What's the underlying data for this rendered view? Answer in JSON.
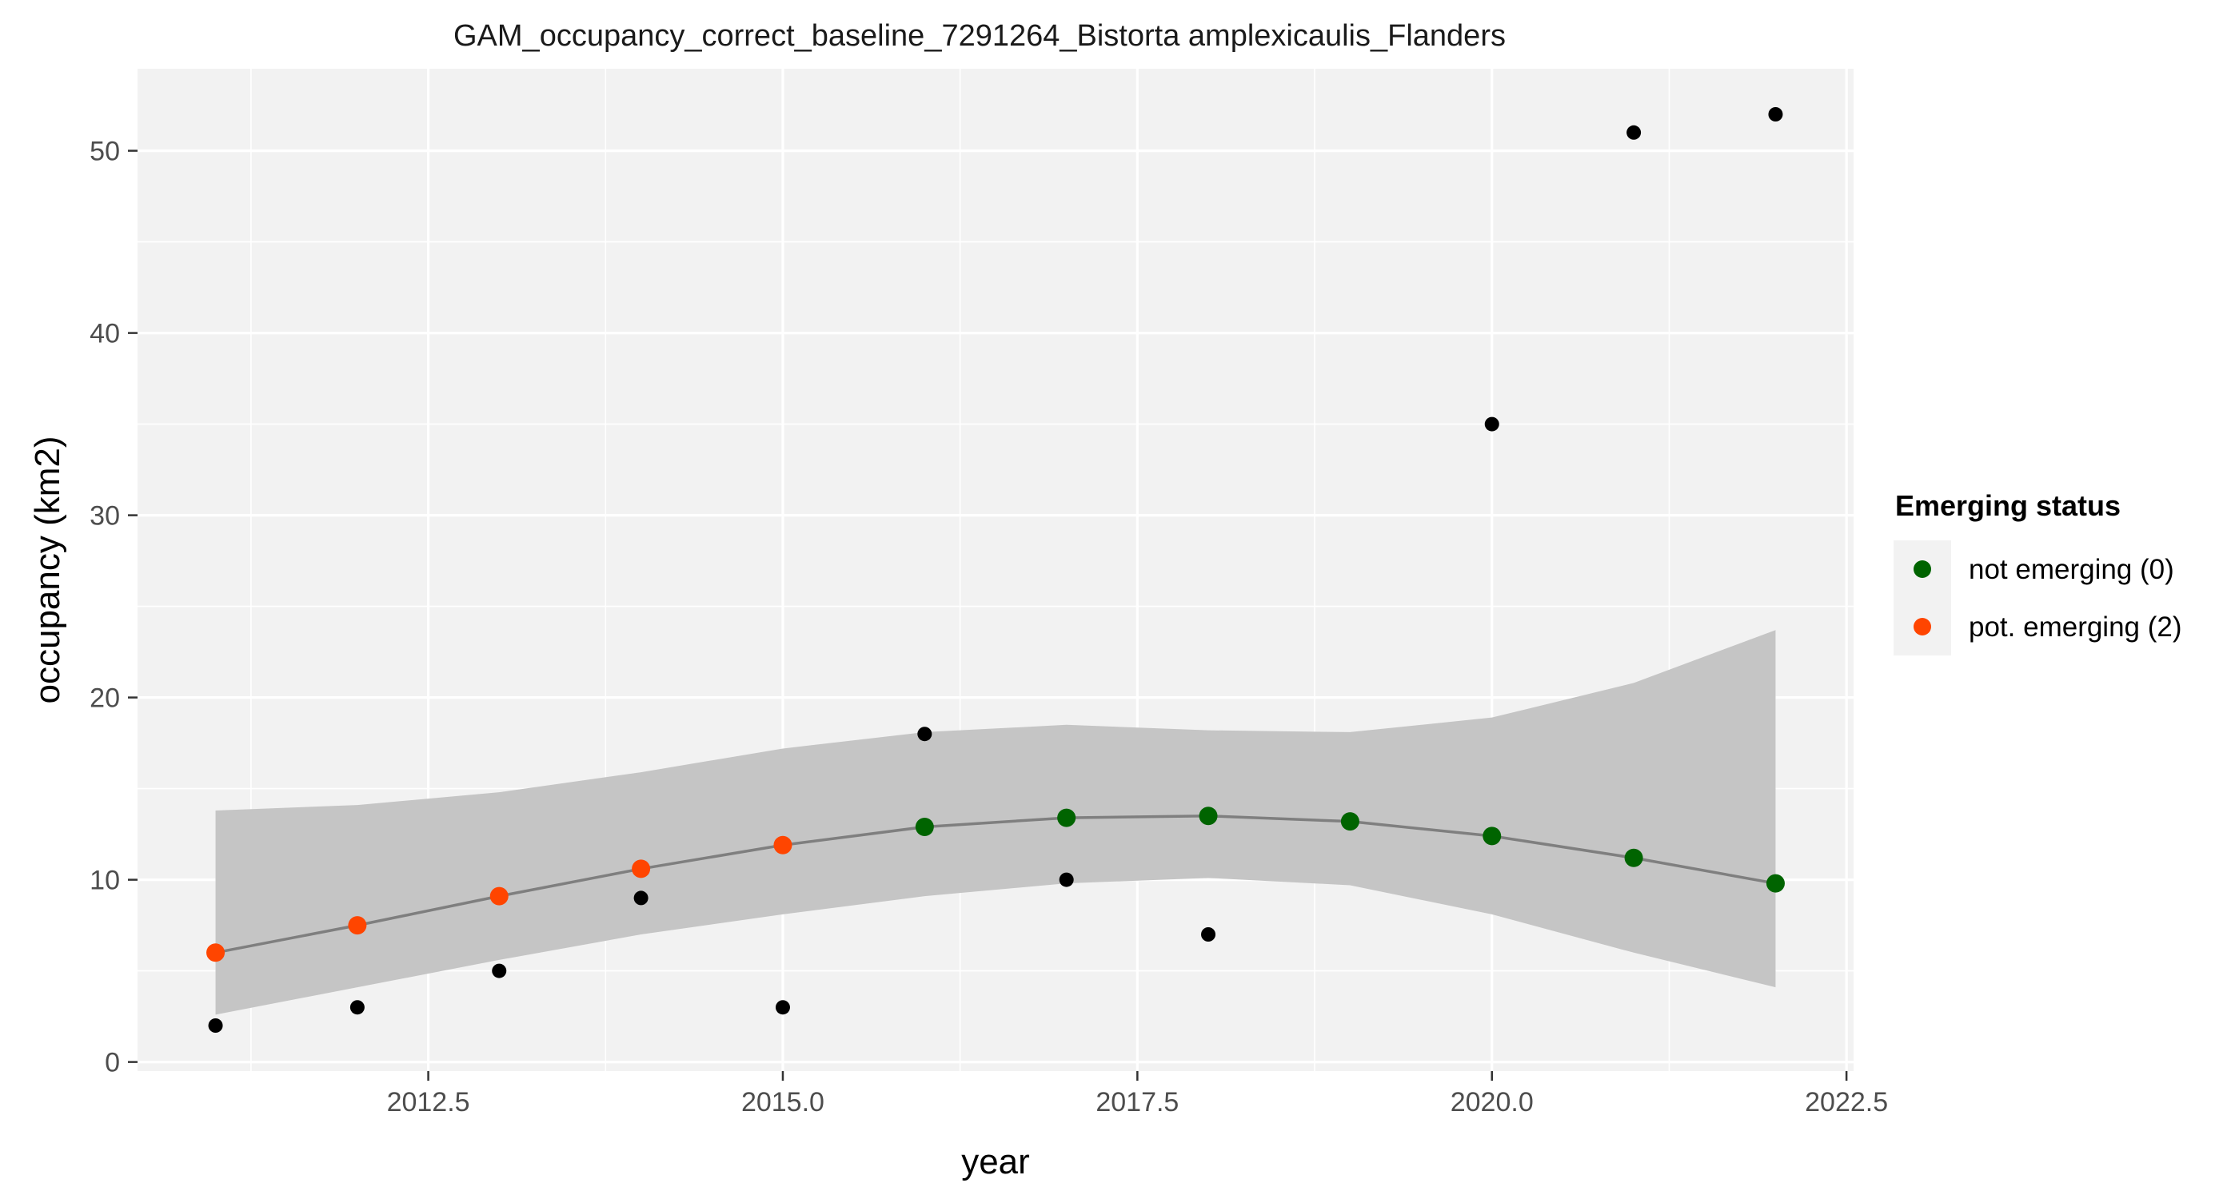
{
  "chart_data": {
    "type": "scatter",
    "title": "GAM_occupancy_correct_baseline_7291264_Bistorta amplexicaulis_Flanders",
    "xlabel": "year",
    "ylabel": "occupancy (km2)",
    "xlim": [
      2010.45,
      2022.55
    ],
    "ylim": [
      -0.5,
      54.5
    ],
    "x_ticks": [
      2012.5,
      2015.0,
      2017.5,
      2020.0,
      2022.5
    ],
    "x_tick_labels": [
      "2012.5",
      "2015.0",
      "2017.5",
      "2020.0",
      "2022.5"
    ],
    "y_ticks": [
      0,
      10,
      20,
      30,
      40,
      50
    ],
    "y_tick_labels": [
      "0",
      "10",
      "20",
      "30",
      "40",
      "50"
    ],
    "grid": true,
    "legend_placement": "right",
    "observed": {
      "color": "#000000",
      "x": [
        2011,
        2012,
        2013,
        2014,
        2015,
        2016,
        2017,
        2018,
        2020,
        2021,
        2022
      ],
      "y": [
        2,
        3,
        5,
        9,
        3,
        18,
        10,
        7,
        35,
        51,
        52
      ]
    },
    "fit": {
      "line_color": "#7f7f7f",
      "band_color": "#c5c5c5",
      "x": [
        2011,
        2012,
        2013,
        2014,
        2015,
        2016,
        2017,
        2018,
        2019,
        2020,
        2021,
        2022
      ],
      "y": [
        6.0,
        7.5,
        9.1,
        10.6,
        11.9,
        12.9,
        13.4,
        13.5,
        13.2,
        12.4,
        11.2,
        9.8
      ],
      "lower": [
        2.6,
        4.1,
        5.6,
        7.0,
        8.1,
        9.1,
        9.8,
        10.1,
        9.7,
        8.1,
        6.0,
        4.1
      ],
      "upper": [
        13.8,
        14.1,
        14.8,
        15.9,
        17.2,
        18.1,
        18.5,
        18.2,
        18.1,
        18.9,
        20.8,
        23.7
      ],
      "status": [
        2,
        2,
        2,
        2,
        2,
        0,
        0,
        0,
        0,
        0,
        0,
        0
      ]
    },
    "legend": {
      "title": "Emerging status",
      "entries": [
        {
          "label": "not emerging (0)",
          "color": "#006400",
          "status": 0
        },
        {
          "label": "pot. emerging (2)",
          "color": "#ff4500",
          "status": 2
        }
      ]
    }
  }
}
